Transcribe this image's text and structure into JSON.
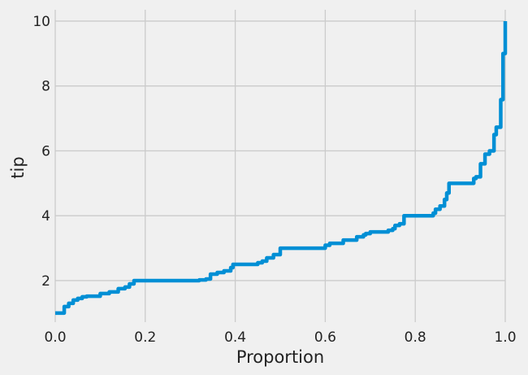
{
  "chart_data": {
    "type": "line",
    "title": "",
    "xlabel": "Proportion",
    "ylabel": "tip",
    "xlim": [
      0.0,
      1.0
    ],
    "ylim": [
      0.72,
      10.35
    ],
    "xticks": [
      "0.0",
      "0.2",
      "0.4",
      "0.6",
      "0.8",
      "1.0"
    ],
    "yticks": [
      "2",
      "4",
      "6",
      "8",
      "10"
    ],
    "grid": true,
    "legend": "none",
    "colors": {
      "series": "#008fd5",
      "background": "#f0f0f0",
      "grid": "#cbcbcb"
    },
    "series": [
      {
        "drawstyle": "steps-post",
        "x": [
          0.0,
          0.02,
          0.03,
          0.04,
          0.05,
          0.06,
          0.07,
          0.1,
          0.12,
          0.14,
          0.155,
          0.165,
          0.175,
          0.32,
          0.335,
          0.345,
          0.36,
          0.375,
          0.39,
          0.395,
          0.45,
          0.46,
          0.47,
          0.485,
          0.5,
          0.6,
          0.61,
          0.64,
          0.67,
          0.685,
          0.69,
          0.7,
          0.74,
          0.75,
          0.755,
          0.765,
          0.775,
          0.785,
          0.84,
          0.845,
          0.855,
          0.865,
          0.87,
          0.875,
          0.885,
          0.93,
          0.935,
          0.945,
          0.955,
          0.965,
          0.975,
          0.98,
          0.99,
          0.995,
          1.0
        ],
        "y": [
          1.0,
          1.2,
          1.3,
          1.4,
          1.45,
          1.5,
          1.52,
          1.6,
          1.65,
          1.75,
          1.8,
          1.9,
          2.0,
          2.02,
          2.05,
          2.2,
          2.25,
          2.3,
          2.4,
          2.5,
          2.55,
          2.6,
          2.7,
          2.8,
          3.0,
          3.09,
          3.15,
          3.25,
          3.35,
          3.41,
          3.45,
          3.5,
          3.55,
          3.6,
          3.7,
          3.75,
          4.0,
          4.0,
          4.08,
          4.2,
          4.3,
          4.5,
          4.7,
          5.0,
          5.0,
          5.15,
          5.2,
          5.6,
          5.9,
          6.0,
          6.5,
          6.73,
          7.58,
          9.0,
          10.0
        ]
      }
    ]
  }
}
